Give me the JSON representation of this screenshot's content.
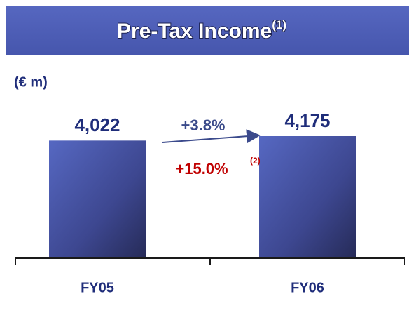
{
  "chart_data": {
    "type": "bar",
    "title": "Pre-Tax Income",
    "title_note": "(1)",
    "unit_label": "(€ m)",
    "categories": [
      "FY05",
      "FY06"
    ],
    "values": [
      4022,
      4175
    ],
    "value_labels": [
      "4,022",
      "4,175"
    ],
    "color": "#4a5ab4",
    "annotations": {
      "growth": "+3.8%",
      "adjusted_growth": "+15.0%",
      "adjusted_note": "(2)"
    }
  }
}
